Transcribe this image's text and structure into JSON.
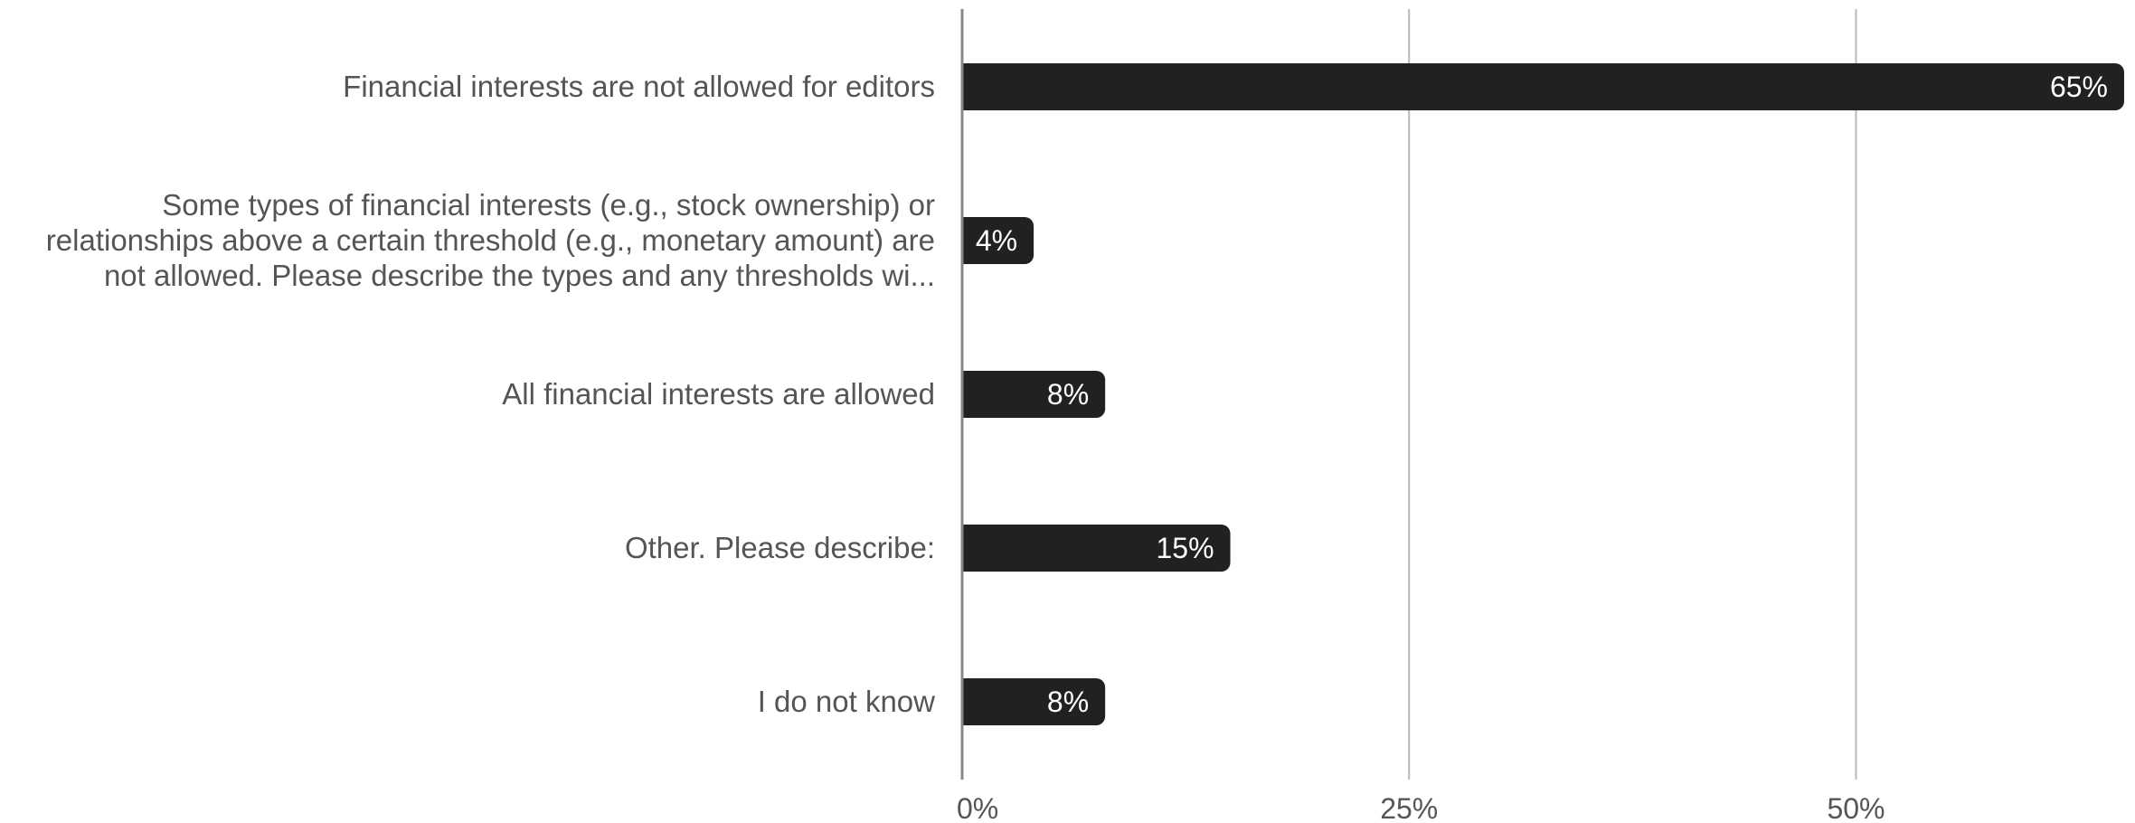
{
  "chart_data": {
    "type": "bar",
    "orientation": "horizontal",
    "categories": [
      [
        "Financial interests are not allowed for editors"
      ],
      [
        "Some types of financial interests (e.g., stock ownership) or",
        "relationships above a certain threshold (e.g., monetary amount) are",
        "not allowed. Please describe the types and any thresholds wi..."
      ],
      [
        "All financial interests are allowed"
      ],
      [
        "Other. Please describe:"
      ],
      [
        "I do not know"
      ]
    ],
    "values": [
      65,
      4,
      8,
      15,
      8
    ],
    "data_labels": [
      "65%",
      "4%",
      "8%",
      "15%",
      "8%"
    ],
    "x_ticks": [
      {
        "value": 0,
        "label": "0%"
      },
      {
        "value": 25,
        "label": "25%"
      },
      {
        "value": 50,
        "label": "50%"
      }
    ],
    "xlim": [
      0,
      65
    ],
    "grid": true,
    "legend": "none",
    "title": "",
    "xlabel": "",
    "ylabel": "",
    "colors": {
      "bar": "#212121",
      "grid": "#b8b8b8",
      "axis": "#888888",
      "text": "#555555",
      "data_label": "#ffffff"
    }
  }
}
